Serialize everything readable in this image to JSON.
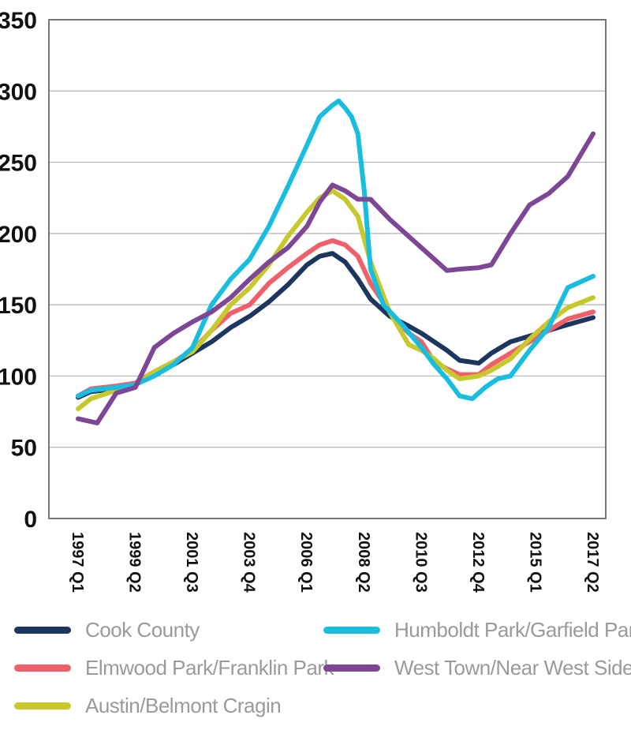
{
  "chart_data": {
    "type": "line",
    "title": "",
    "xlabel": "",
    "ylabel": "",
    "ylim": [
      0,
      350
    ],
    "yticks": [
      0,
      50,
      100,
      150,
      200,
      250,
      300,
      350
    ],
    "xlim": [
      1997.0,
      2017.25
    ],
    "xticks": [
      {
        "label": "1997 Q1",
        "value": 1997.0
      },
      {
        "label": "1999 Q2",
        "value": 1999.25
      },
      {
        "label": "2001 Q3",
        "value": 2001.5
      },
      {
        "label": "2003 Q4",
        "value": 2003.75
      },
      {
        "label": "2006 Q1",
        "value": 2006.0
      },
      {
        "label": "2008 Q2",
        "value": 2008.25
      },
      {
        "label": "2010 Q3",
        "value": 2010.5
      },
      {
        "label": "2012 Q4",
        "value": 2012.75
      },
      {
        "label": "2015 Q1",
        "value": 2015.0
      },
      {
        "label": "2017 Q2",
        "value": 2017.25
      }
    ],
    "grid": "horizontal",
    "legend_position": "bottom",
    "series": [
      {
        "name": "Cook County",
        "color": "#1c3660",
        "x": [
          1997.0,
          1997.5,
          1998.5,
          1999.25,
          2000.0,
          2000.75,
          2001.5,
          2002.25,
          2003.0,
          2003.75,
          2004.5,
          2005.25,
          2006.0,
          2006.5,
          2007.0,
          2007.5,
          2008.0,
          2008.5,
          2009.25,
          2010.0,
          2010.5,
          2011.0,
          2011.5,
          2012.0,
          2012.75,
          2013.25,
          2014.0,
          2014.75,
          2015.5,
          2016.25,
          2017.25
        ],
        "values": [
          85,
          89,
          91,
          94,
          102,
          108,
          116,
          124,
          134,
          142,
          152,
          164,
          178,
          184,
          186,
          180,
          168,
          154,
          142,
          135,
          130,
          124,
          118,
          111,
          109,
          116,
          124,
          128,
          132,
          136,
          141
        ]
      },
      {
        "name": "Elmwood Park/Franklin Park",
        "color": "#f0606a",
        "x": [
          1997.0,
          1997.5,
          1998.5,
          1999.25,
          2000.0,
          2000.75,
          2001.5,
          2002.25,
          2003.0,
          2003.75,
          2004.5,
          2005.25,
          2006.0,
          2006.5,
          2007.0,
          2007.5,
          2008.0,
          2008.5,
          2009.25,
          2010.0,
          2010.5,
          2011.0,
          2011.5,
          2012.0,
          2012.75,
          2013.25,
          2014.0,
          2014.75,
          2015.5,
          2016.25,
          2017.25
        ],
        "values": [
          86,
          91,
          93,
          95,
          103,
          110,
          118,
          132,
          144,
          150,
          165,
          176,
          186,
          192,
          195,
          192,
          184,
          165,
          145,
          130,
          124,
          110,
          105,
          101,
          101,
          108,
          116,
          124,
          132,
          140,
          145
        ]
      },
      {
        "name": "Austin/Belmont Cragin",
        "color": "#c6c82c",
        "x": [
          1997.0,
          1997.5,
          1998.5,
          1999.25,
          2000.0,
          2000.75,
          2001.5,
          2002.25,
          2003.0,
          2003.75,
          2004.5,
          2005.25,
          2006.0,
          2006.5,
          2007.0,
          2007.5,
          2008.0,
          2008.5,
          2009.25,
          2010.0,
          2010.5,
          2011.0,
          2011.5,
          2012.0,
          2012.75,
          2013.25,
          2014.0,
          2014.75,
          2015.5,
          2016.25,
          2017.25
        ],
        "values": [
          77,
          84,
          90,
          94,
          103,
          110,
          117,
          132,
          150,
          162,
          178,
          198,
          215,
          225,
          230,
          224,
          212,
          180,
          145,
          122,
          118,
          112,
          104,
          98,
          100,
          104,
          112,
          126,
          138,
          148,
          155
        ]
      },
      {
        "name": "Humboldt Park/Garfield Park",
        "color": "#19bde0",
        "x": [
          1997.0,
          1997.5,
          1998.5,
          1999.25,
          2000.0,
          2000.75,
          2001.5,
          2002.25,
          2003.0,
          2003.75,
          2004.5,
          2005.25,
          2006.0,
          2006.5,
          2007.0,
          2007.25,
          2007.5,
          2007.75,
          2008.0,
          2008.25,
          2008.5,
          2009.0,
          2009.75,
          2010.5,
          2011.0,
          2011.5,
          2012.0,
          2012.5,
          2013.0,
          2013.5,
          2014.0,
          2014.75,
          2015.5,
          2016.25,
          2017.25
        ],
        "values": [
          86,
          90,
          92,
          94,
          100,
          108,
          120,
          150,
          168,
          182,
          205,
          233,
          262,
          282,
          290,
          293,
          288,
          282,
          270,
          230,
          175,
          150,
          136,
          120,
          108,
          98,
          86,
          84,
          92,
          98,
          100,
          118,
          134,
          162,
          170
        ]
      },
      {
        "name": "West Town/Near West Side",
        "color": "#7d4795",
        "x": [
          1997.0,
          1997.75,
          1998.5,
          1999.25,
          2000.0,
          2000.75,
          2001.5,
          2002.25,
          2003.0,
          2003.75,
          2004.5,
          2005.25,
          2006.0,
          2006.5,
          2007.0,
          2007.5,
          2008.0,
          2008.5,
          2009.25,
          2010.0,
          2010.5,
          2011.0,
          2011.5,
          2012.0,
          2012.75,
          2013.25,
          2014.0,
          2014.75,
          2015.5,
          2016.25,
          2017.25
        ],
        "values": [
          70,
          67,
          88,
          92,
          120,
          130,
          138,
          145,
          155,
          168,
          180,
          190,
          205,
          222,
          234,
          230,
          224,
          224,
          210,
          198,
          190,
          182,
          174,
          175,
          176,
          178,
          200,
          220,
          228,
          240,
          270
        ]
      }
    ],
    "legend": [
      {
        "label": "Cook County",
        "color": "#1c3660"
      },
      {
        "label": "Humboldt Park/Garfield Park",
        "color": "#19bde0"
      },
      {
        "label": "Elmwood Park/Franklin Park",
        "color": "#f0606a"
      },
      {
        "label": "West Town/Near West Side",
        "color": "#7d4795"
      },
      {
        "label": "Austin/Belmont Cragin",
        "color": "#c6c82c"
      }
    ]
  }
}
